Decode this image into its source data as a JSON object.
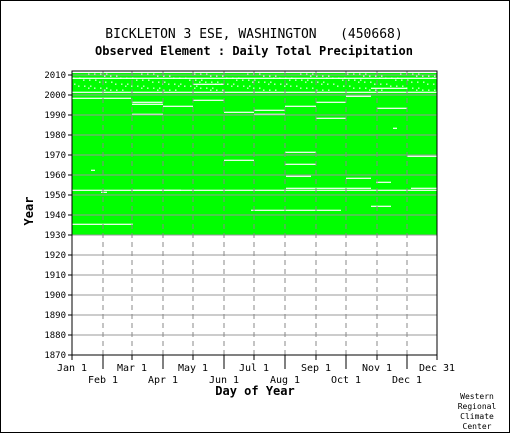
{
  "chart_data": {
    "type": "heatmap",
    "title": "BICKLETON 3 ESE, WASHINGTON   (450668)",
    "subtitle": "Observed Element : Daily Total Precipitation",
    "xlabel": "Day of Year",
    "ylabel": "Year",
    "x_range_days": [
      1,
      366
    ],
    "ylim": [
      1870,
      2012
    ],
    "y_ticks": [
      1870,
      1880,
      1890,
      1900,
      1910,
      1920,
      1930,
      1940,
      1950,
      1960,
      1970,
      1980,
      1990,
      2000,
      2010
    ],
    "x_ticks_upper": [
      {
        "label": "Jan 1",
        "day": 1
      },
      {
        "label": "Mar 1",
        "day": 61
      },
      {
        "label": "May 1",
        "day": 122
      },
      {
        "label": "Jul 1",
        "day": 183
      },
      {
        "label": "Sep 1",
        "day": 245
      },
      {
        "label": "Nov 1",
        "day": 306
      },
      {
        "label": "Dec 31",
        "day": 366
      }
    ],
    "x_ticks_lower": [
      {
        "label": "Feb 1",
        "day": 32
      },
      {
        "label": "Apr 1",
        "day": 92
      },
      {
        "label": "Jun 1",
        "day": 153
      },
      {
        "label": "Aug 1",
        "day": 214
      },
      {
        "label": "Oct 1",
        "day": 275
      },
      {
        "label": "Dec 1",
        "day": 336
      }
    ],
    "grid": true,
    "data_color": "#00ff00",
    "data_years": [
      1930,
      2010
    ],
    "missing_segments": [
      {
        "year": 1935,
        "start_day": 1,
        "end_day": 62
      },
      {
        "year": 1942,
        "start_day": 180,
        "end_day": 270
      },
      {
        "year": 1944,
        "start_day": 300,
        "end_day": 320
      },
      {
        "year": 1951,
        "start_day": 30,
        "end_day": 36
      },
      {
        "year": 1952,
        "start_day": 1,
        "end_day": 366
      },
      {
        "year": 1952,
        "start_day": 61,
        "end_day": 110
      },
      {
        "year": 1953,
        "start_day": 215,
        "end_day": 300
      },
      {
        "year": 1953,
        "start_day": 340,
        "end_day": 366
      },
      {
        "year": 1956,
        "start_day": 305,
        "end_day": 320
      },
      {
        "year": 1958,
        "start_day": 275,
        "end_day": 300
      },
      {
        "year": 1959,
        "start_day": 215,
        "end_day": 240
      },
      {
        "year": 1962,
        "start_day": 20,
        "end_day": 24
      },
      {
        "year": 1965,
        "start_day": 214,
        "end_day": 245
      },
      {
        "year": 1967,
        "start_day": 153,
        "end_day": 183
      },
      {
        "year": 1969,
        "start_day": 336,
        "end_day": 366
      },
      {
        "year": 1971,
        "start_day": 214,
        "end_day": 245
      },
      {
        "year": 1983,
        "start_day": 322,
        "end_day": 326
      },
      {
        "year": 1988,
        "start_day": 245,
        "end_day": 275
      },
      {
        "year": 1990,
        "start_day": 61,
        "end_day": 92
      },
      {
        "year": 1990,
        "start_day": 183,
        "end_day": 214
      },
      {
        "year": 1991,
        "start_day": 153,
        "end_day": 183
      },
      {
        "year": 1992,
        "start_day": 183,
        "end_day": 214
      },
      {
        "year": 1993,
        "start_day": 306,
        "end_day": 336
      },
      {
        "year": 1994,
        "start_day": 92,
        "end_day": 122
      },
      {
        "year": 1994,
        "start_day": 214,
        "end_day": 245
      },
      {
        "year": 1995,
        "start_day": 61,
        "end_day": 92
      },
      {
        "year": 1996,
        "start_day": 61,
        "end_day": 92
      },
      {
        "year": 1996,
        "start_day": 245,
        "end_day": 275
      },
      {
        "year": 1997,
        "start_day": 122,
        "end_day": 153
      },
      {
        "year": 1998,
        "start_day": 1,
        "end_day": 60
      },
      {
        "year": 1999,
        "start_day": 275,
        "end_day": 300
      },
      {
        "year": 2001,
        "start_day": 1,
        "end_day": 366
      },
      {
        "year": 2003,
        "start_day": 300,
        "end_day": 336
      },
      {
        "year": 2005,
        "start_day": 122,
        "end_day": 153
      },
      {
        "year": 2008,
        "start_day": 1,
        "end_day": 366
      }
    ]
  },
  "footer": {
    "credit_lines": [
      "Western",
      "Regional",
      "Climate",
      "Center"
    ]
  }
}
